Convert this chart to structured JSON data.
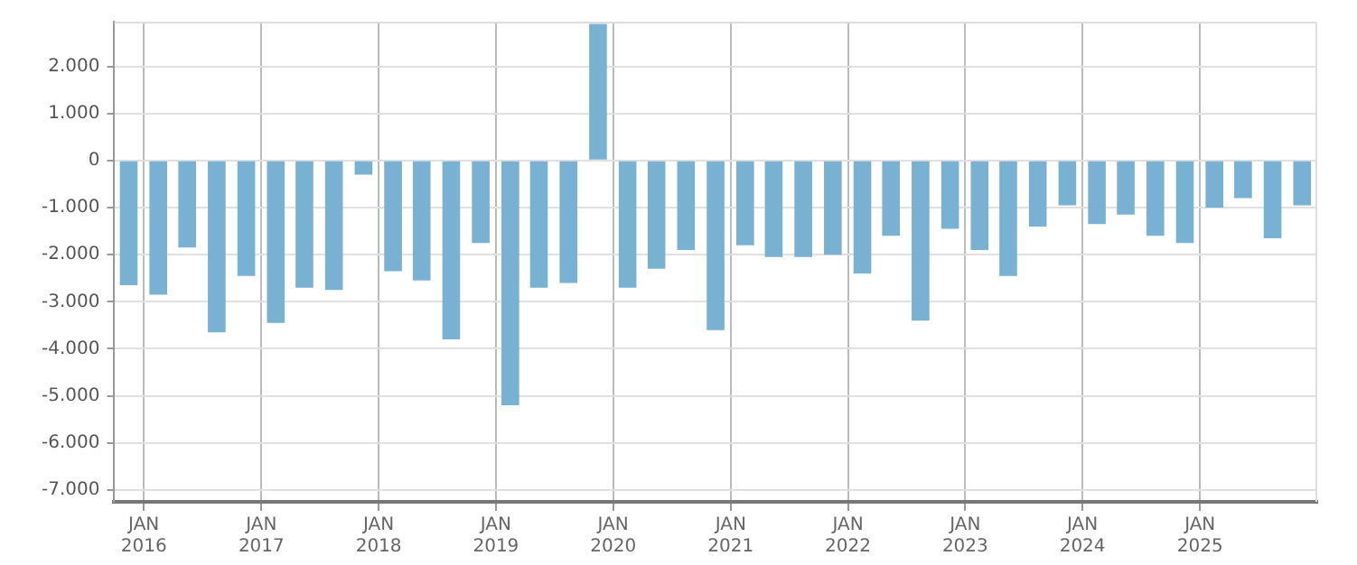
{
  "chart_data": {
    "type": "bar",
    "color": "#79b1d3",
    "x": [
      "2015-11-15",
      "2016-02-15",
      "2016-05-15",
      "2016-08-15",
      "2016-11-15",
      "2017-02-15",
      "2017-05-15",
      "2017-08-15",
      "2017-11-15",
      "2018-02-15",
      "2018-05-15",
      "2018-08-15",
      "2018-11-15",
      "2019-02-15",
      "2019-05-15",
      "2019-08-15",
      "2019-11-15",
      "2020-02-15",
      "2020-05-15",
      "2020-08-15",
      "2020-11-15",
      "2021-02-15",
      "2021-05-15",
      "2021-08-15",
      "2021-11-15",
      "2022-02-15",
      "2022-05-15",
      "2022-08-15",
      "2022-11-15",
      "2023-02-15",
      "2023-05-15",
      "2023-08-15",
      "2023-11-15",
      "2024-02-15",
      "2024-05-15",
      "2024-08-15",
      "2024-11-15",
      "2025-02-15",
      "2025-05-15",
      "2025-08-15",
      "2025-11-15"
    ],
    "values": [
      -2650,
      -2850,
      -1850,
      -3650,
      -2450,
      -3450,
      -2700,
      -2750,
      -300,
      -2350,
      -2550,
      -3800,
      -1750,
      -5200,
      -2700,
      -2600,
      2900,
      -2700,
      -2300,
      -1900,
      -3600,
      -1800,
      -2050,
      -2050,
      -2000,
      -2400,
      -1600,
      -3400,
      -1450,
      -1900,
      -2450,
      -1400,
      -950,
      -1350,
      -1150,
      -1600,
      -1750,
      -1000,
      -800,
      -1650,
      -950
    ],
    "xlim": [
      "2015-10-01",
      "2026-01-01"
    ],
    "xticks": [
      {
        "value": "2016-01-01",
        "label": "JAN\n2016"
      },
      {
        "value": "2017-01-01",
        "label": "JAN\n2017"
      },
      {
        "value": "2018-01-01",
        "label": "JAN\n2018"
      },
      {
        "value": "2019-01-01",
        "label": "JAN\n2019"
      },
      {
        "value": "2020-01-01",
        "label": "JAN\n2020"
      },
      {
        "value": "2021-01-01",
        "label": "JAN\n2021"
      },
      {
        "value": "2022-01-01",
        "label": "JAN\n2022"
      },
      {
        "value": "2023-01-01",
        "label": "JAN\n2023"
      },
      {
        "value": "2024-01-01",
        "label": "JAN\n2024"
      },
      {
        "value": "2025-01-01",
        "label": "JAN\n2025"
      }
    ],
    "ylim": [
      -7250,
      2950
    ],
    "yticks": [
      {
        "value": 2000,
        "label": "2.000"
      },
      {
        "value": 1000,
        "label": "1.000"
      },
      0,
      {
        "value": -1000,
        "label": "-1.000"
      },
      {
        "value": -2000,
        "label": "-2.000"
      },
      {
        "value": -3000,
        "label": "-3.000"
      },
      {
        "value": -4000,
        "label": "-4.000"
      },
      {
        "value": -5000,
        "label": "-5.000"
      },
      {
        "value": -6000,
        "label": "-6.000"
      },
      {
        "value": -7000,
        "label": "-7.000"
      }
    ],
    "grid": true,
    "legend": false
  }
}
